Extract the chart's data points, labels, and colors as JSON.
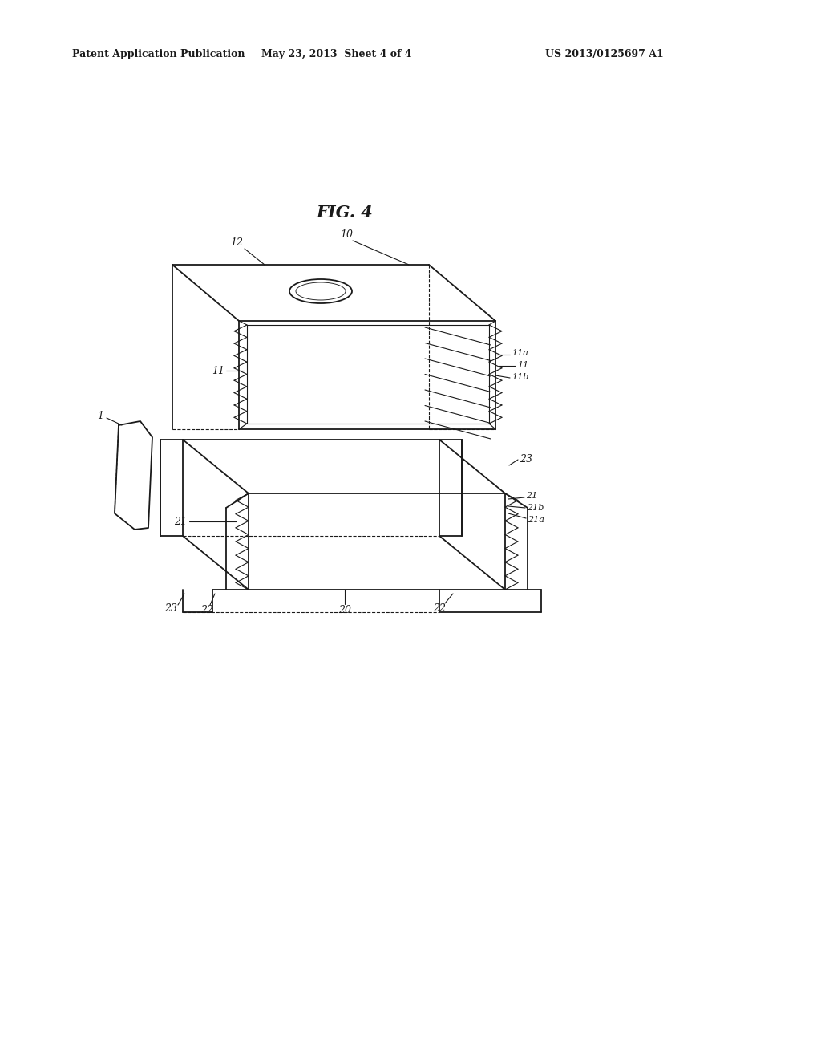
{
  "header_left": "Patent Application Publication",
  "header_mid": "May 23, 2013  Sheet 4 of 4",
  "header_right": "US 2013/0125697 A1",
  "fig_label": "FIG. 4",
  "bg_color": "#ffffff",
  "line_color": "#1a1a1a",
  "lw": 1.3,
  "tlw": 0.8
}
